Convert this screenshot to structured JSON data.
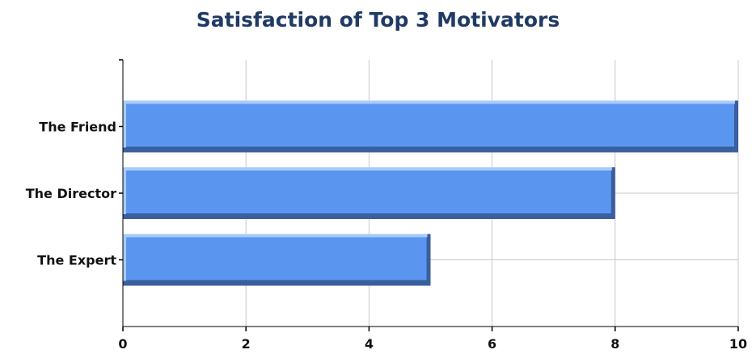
{
  "chart_data": {
    "type": "bar",
    "orientation": "horizontal",
    "title": "Satisfaction of Top 3 Motivators",
    "categories": [
      "The Friend",
      "The Director",
      "The Expert"
    ],
    "values": [
      10,
      8,
      5
    ],
    "xlabel": "",
    "ylabel": "",
    "xlim": [
      0,
      10
    ],
    "xticks": [
      "0",
      "2",
      "4",
      "6",
      "8",
      "10"
    ],
    "grid": true,
    "legend": "none",
    "colors": {
      "bar_face": "#5a96f0",
      "bar_highlight": "#a9cbf7",
      "bar_shadow": "#3a5f9e",
      "grid": "#c8c8c8",
      "axis": "#000000",
      "title": "#1f3a64"
    }
  }
}
